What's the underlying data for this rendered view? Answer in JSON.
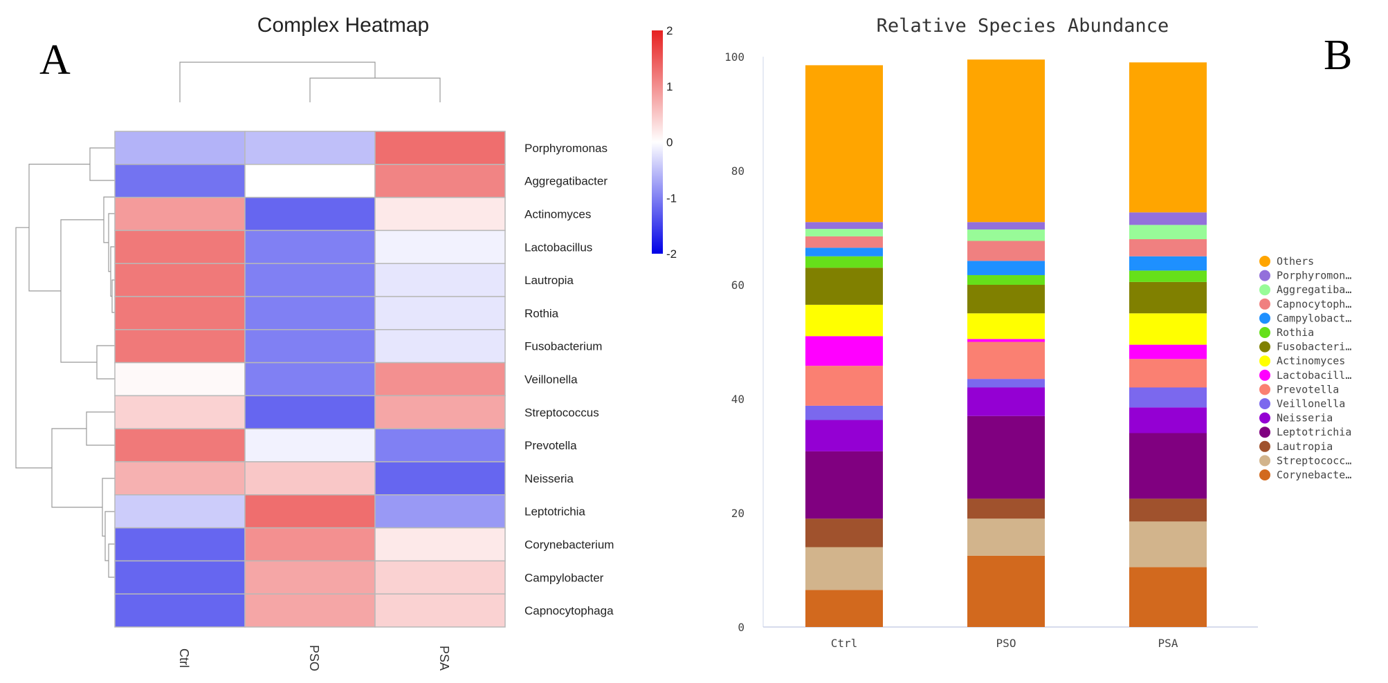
{
  "figure": {
    "panel_a_letter": "A",
    "panel_b_letter": "B"
  },
  "chart_data": [
    {
      "type": "heatmap",
      "title": "Complex Heatmap",
      "columns": [
        "Ctrl",
        "PSO",
        "PSA"
      ],
      "rows": [
        "Porphyromonas",
        "Aggregatibacter",
        "Actinomyces",
        "Lactobacillus",
        "Lautropia",
        "Rothia",
        "Fusobacterium",
        "Veillonella",
        "Streptococcus",
        "Prevotella",
        "Neisseria",
        "Leptotrichia",
        "Corynebacterium",
        "Campylobacter",
        "Capnocytophaga"
      ],
      "values": [
        [
          -0.6,
          -0.5,
          1.3
        ],
        [
          -1.1,
          0.0,
          1.1
        ],
        [
          0.9,
          -1.2,
          0.2
        ],
        [
          1.2,
          -1.0,
          -0.1
        ],
        [
          1.2,
          -1.0,
          -0.2
        ],
        [
          1.2,
          -1.0,
          -0.2
        ],
        [
          1.2,
          -1.0,
          -0.2
        ],
        [
          0.05,
          -1.0,
          1.0
        ],
        [
          0.4,
          -1.2,
          0.8
        ],
        [
          1.2,
          -0.1,
          -1.0
        ],
        [
          0.7,
          0.5,
          -1.2
        ],
        [
          -0.4,
          1.3,
          -0.8
        ],
        [
          -1.2,
          1.0,
          0.2
        ],
        [
          -1.2,
          0.8,
          0.4
        ],
        [
          -1.2,
          0.8,
          0.4
        ]
      ],
      "colorbar": {
        "min": -2,
        "max": 2,
        "ticks": [
          2,
          1,
          0,
          -1,
          -2
        ],
        "colors": [
          "#0000e6",
          "#ffffff",
          "#e62020"
        ]
      }
    },
    {
      "type": "bar",
      "stacked": true,
      "title": "Relative Species Abundance",
      "categories": [
        "Ctrl",
        "PSO",
        "PSA"
      ],
      "ylim": [
        0,
        100
      ],
      "yticks": [
        0,
        20,
        40,
        60,
        80,
        100
      ],
      "series": [
        {
          "name": "Corynebacte…",
          "color": "#d2691e",
          "values": [
            6.5,
            12.5,
            10.5
          ]
        },
        {
          "name": "Streptococc…",
          "color": "#d2b48c",
          "values": [
            7.5,
            6.5,
            8.0
          ]
        },
        {
          "name": "Lautropia",
          "color": "#a0522d",
          "values": [
            5.0,
            3.5,
            4.0
          ]
        },
        {
          "name": "Leptotrichia",
          "color": "#800080",
          "values": [
            11.8,
            14.5,
            11.5
          ]
        },
        {
          "name": "Neisseria",
          "color": "#9400d3",
          "values": [
            5.5,
            5.0,
            4.5
          ]
        },
        {
          "name": "Veillonella",
          "color": "#7b68ee",
          "values": [
            2.5,
            1.5,
            3.5
          ]
        },
        {
          "name": "Prevotella",
          "color": "#fa8072",
          "values": [
            7.0,
            6.5,
            5.0
          ]
        },
        {
          "name": "Lactobacill…",
          "color": "#ff00ff",
          "values": [
            5.2,
            0.5,
            2.5
          ]
        },
        {
          "name": "Actinomyces",
          "color": "#ffff00",
          "values": [
            5.5,
            4.5,
            5.5
          ]
        },
        {
          "name": "Fusobacteri…",
          "color": "#808000",
          "values": [
            6.5,
            5.0,
            5.5
          ]
        },
        {
          "name": "Rothia",
          "color": "#66e01a",
          "values": [
            2.0,
            1.7,
            2.0
          ]
        },
        {
          "name": "Campylobact…",
          "color": "#1e90ff",
          "values": [
            1.5,
            2.5,
            2.5
          ]
        },
        {
          "name": "Capnocytoph…",
          "color": "#f08080",
          "values": [
            2.0,
            3.5,
            3.0
          ]
        },
        {
          "name": "Aggregatiba…",
          "color": "#98fb98",
          "values": [
            1.3,
            2.0,
            2.5
          ]
        },
        {
          "name": "Porphyromon…",
          "color": "#9370db",
          "values": [
            1.2,
            1.3,
            2.2
          ]
        },
        {
          "name": "Others",
          "color": "#ffa500",
          "values": [
            27.5,
            28.5,
            26.3
          ]
        }
      ],
      "legend_order": [
        "Others",
        "Porphyromon…",
        "Aggregatiba…",
        "Capnocytoph…",
        "Campylobact…",
        "Rothia",
        "Fusobacteri…",
        "Actinomyces",
        "Lactobacill…",
        "Prevotella",
        "Veillonella",
        "Neisseria",
        "Leptotrichia",
        "Lautropia",
        "Streptococc…",
        "Corynebacte…"
      ]
    }
  ]
}
